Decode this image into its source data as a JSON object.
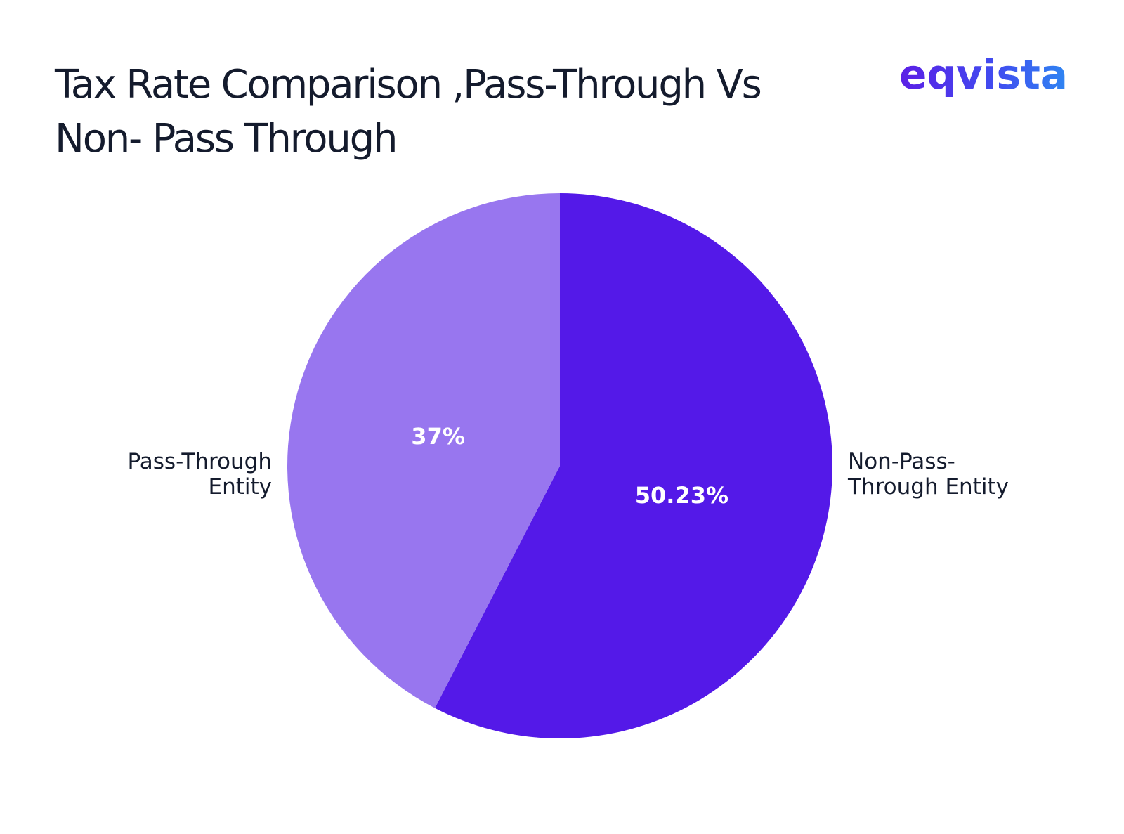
{
  "logo": {
    "text": "eqvista"
  },
  "chart_data": {
    "type": "pie",
    "title_lines": [
      "Tax Rate Comparison ,Pass-Through Vs",
      "Non- Pass Through"
    ],
    "start": "top",
    "direction": "clockwise",
    "slices": [
      {
        "name_lines": [
          "Non-Pass-",
          "Through Entity"
        ],
        "value": 50.23,
        "value_label": "50.23%",
        "color": "#5419e8",
        "label_side": "right"
      },
      {
        "name_lines": [
          "Pass-Through",
          "Entity"
        ],
        "value": 37,
        "value_label": "37%",
        "color": "#9876ef",
        "label_side": "left"
      }
    ]
  }
}
